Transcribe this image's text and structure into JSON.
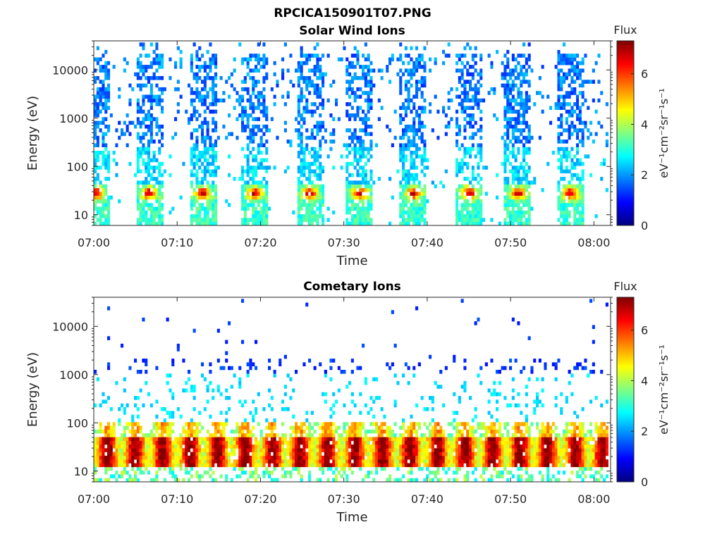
{
  "figure_title": "RPCICA150901T07.PNG",
  "chart_data": [
    {
      "type": "heatmap",
      "title": "Solar Wind Ions",
      "xlabel": "Time",
      "ylabel": "Energy (eV)",
      "y_scale": "log",
      "ylim": [
        6,
        40000
      ],
      "x_ticks": [
        "07:00",
        "07:10",
        "07:20",
        "07:30",
        "07:40",
        "07:50",
        "08:00"
      ],
      "y_ticks": [
        "10",
        "100",
        "1000",
        "10000"
      ],
      "colorbar": {
        "label": "Flux",
        "unit": "eV⁻¹cm⁻²sr⁻¹s⁻¹",
        "range": [
          0,
          7.3
        ],
        "ticks": [
          "0",
          "2",
          "4",
          "6"
        ]
      },
      "pulse_period_min": 6.6,
      "pulse_centers_min": [
        0.3,
        6.6,
        13.1,
        19.3,
        25.9,
        31.9,
        38.4,
        45.0,
        50.9,
        57.2
      ],
      "core_energy_eV": 28,
      "core_flux": 5.6
    },
    {
      "type": "heatmap",
      "title": "Cometary Ions",
      "xlabel": "Time",
      "ylabel": "Energy (eV)",
      "y_scale": "log",
      "ylim": [
        6,
        40000
      ],
      "x_ticks": [
        "07:00",
        "07:10",
        "07:20",
        "07:30",
        "07:40",
        "07:50",
        "08:00"
      ],
      "y_ticks": [
        "10",
        "100",
        "1000",
        "10000"
      ],
      "colorbar": {
        "label": "Flux",
        "unit": "eV⁻¹cm⁻²sr⁻¹s⁻¹",
        "range": [
          0,
          7.3
        ],
        "ticks": [
          "0",
          "2",
          "4",
          "6"
        ]
      },
      "pulse_period_min": 3.3,
      "core_energy_range_eV": [
        15,
        45
      ],
      "core_flux": 6.8
    }
  ]
}
